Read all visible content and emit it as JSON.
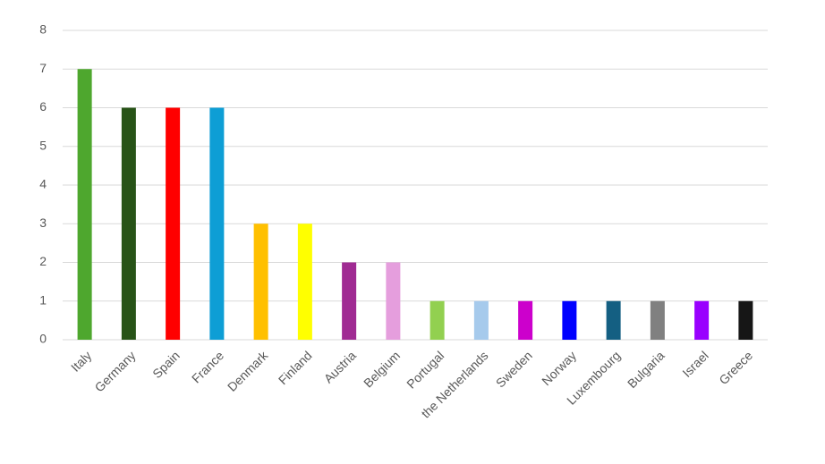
{
  "chart_data": {
    "type": "bar",
    "categories": [
      "Italy",
      "Germany",
      "Spain",
      "France",
      "Denmark",
      "Finland",
      "Austria",
      "Belgium",
      "Portugal",
      "the Netherlands",
      "Sweden",
      "Norway",
      "Luxembourg",
      "Bulgaria",
      "Israel",
      "Greece"
    ],
    "values": [
      7,
      6,
      6,
      6,
      3,
      3,
      2,
      2,
      1,
      1,
      1,
      1,
      1,
      1,
      1,
      1
    ],
    "colors": [
      "#4ea72e",
      "#275317",
      "#ff0000",
      "#0e9ed5",
      "#ffc000",
      "#ffff00",
      "#a02b93",
      "#e59edd",
      "#92d050",
      "#a6caec",
      "#cc00cc",
      "#0000ff",
      "#145f82",
      "#808080",
      "#9900ff",
      "#161616"
    ],
    "ylim": [
      0,
      8
    ],
    "yticks": [
      0,
      1,
      2,
      3,
      4,
      5,
      6,
      7,
      8
    ],
    "grid": true
  }
}
